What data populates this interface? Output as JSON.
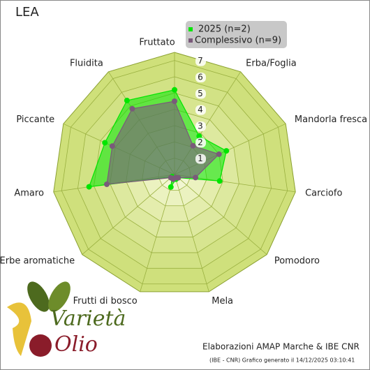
{
  "chart_data": {
    "type": "radar",
    "title": "LEA",
    "categories": [
      "Fruttato",
      "Erba/Foglia",
      "Mandorla fresca",
      "Carciofo",
      "Pomodoro",
      "Mela",
      "Frutti di bosco",
      "Erbe aromatiche",
      "Amaro",
      "Piccante",
      "Fluidita"
    ],
    "series": [
      {
        "name": "2025 (n=2)",
        "color": "#00e600",
        "values": [
          5.2,
          2.8,
          3.5,
          2.8,
          0.3,
          0.3,
          0.8,
          0.2,
          5.3,
          4.7,
          5.4
        ]
      },
      {
        "name": "Complessivo (n=9)",
        "color": "#7a5a7a",
        "values": [
          4.5,
          2.1,
          3.0,
          1.3,
          0.3,
          0.2,
          0.3,
          0.3,
          4.2,
          4.2,
          4.8
        ]
      }
    ],
    "rlim": [
      0,
      7.5
    ],
    "rticks": [
      1,
      2,
      3,
      4,
      5,
      6,
      7
    ],
    "logo": [
      "Varietà",
      "Olio"
    ],
    "credits": "Elaborazioni AMAP Marche & IBE CNR",
    "footnote": "(IBE - CNR) Grafico generato il 14/12/2025 03:10:41"
  }
}
